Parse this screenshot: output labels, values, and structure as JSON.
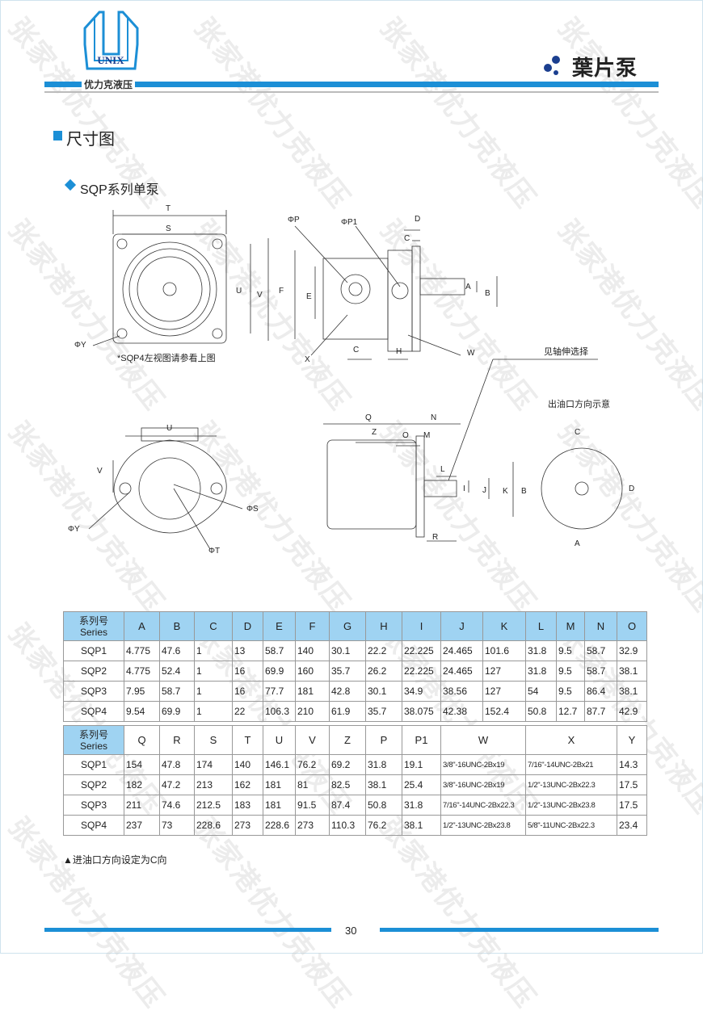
{
  "header": {
    "logo_text": "UNIX",
    "company": "优力克液压",
    "category": "葉片泵",
    "brand_color": "#1c8fd6",
    "dots_color": "#1b3f8f"
  },
  "watermark": "张家港优力克液压",
  "section_title": "尺寸图",
  "subsection_title": "SQP系列单泵",
  "drawings": {
    "front": {
      "T": "T",
      "S": "S",
      "U": "U",
      "V": "V",
      "Y": "ΦY",
      "note": "*SQP4左视图请参看上图"
    },
    "side": {
      "P": "ΦP",
      "P1": "ΦP1",
      "D": "D",
      "C": "C",
      "F": "F",
      "E": "E",
      "A": "A",
      "B": "B",
      "X": "X",
      "C2": "C",
      "H": "H",
      "W": "W"
    },
    "shaft_note": "见轴伸选择",
    "outlet_note": "出油口方向示意",
    "flange": {
      "U": "U",
      "V": "V",
      "S": "ΦS",
      "Y": "ΦY",
      "T": "ΦT"
    },
    "long": {
      "Q": "Q",
      "Z": "Z",
      "O": "O",
      "M": "M",
      "N": "N",
      "L": "L",
      "I": "I",
      "J": "J",
      "K": "K",
      "B": "B",
      "R": "R"
    },
    "outlet": {
      "C": "C",
      "D": "D",
      "A": "A"
    }
  },
  "table1": {
    "series_label_cn": "系列号",
    "series_label_en": "Series",
    "columns": [
      "A",
      "B",
      "C",
      "D",
      "E",
      "F",
      "G",
      "H",
      "I",
      "J",
      "K",
      "L",
      "M",
      "N",
      "O"
    ],
    "rows": [
      [
        "SQP1",
        "4.775",
        "47.6",
        "1",
        "13",
        "58.7",
        "140",
        "30.1",
        "22.2",
        "22.225",
        "24.465",
        "101.6",
        "31.8",
        "9.5",
        "58.7",
        "32.9"
      ],
      [
        "SQP2",
        "4.775",
        "52.4",
        "1",
        "16",
        "69.9",
        "160",
        "35.7",
        "26.2",
        "22.225",
        "24.465",
        "127",
        "31.8",
        "9.5",
        "58.7",
        "38.1"
      ],
      [
        "SQP3",
        "7.95",
        "58.7",
        "1",
        "16",
        "77.7",
        "181",
        "42.8",
        "30.1",
        "34.9",
        "38.56",
        "127",
        "54",
        "9.5",
        "86.4",
        "38.1"
      ],
      [
        "SQP4",
        "9.54",
        "69.9",
        "1",
        "22",
        "106.3",
        "210",
        "61.9",
        "35.7",
        "38.075",
        "42.38",
        "152.4",
        "50.8",
        "12.7",
        "87.7",
        "42.9"
      ]
    ]
  },
  "table2": {
    "series_label_cn": "系列号",
    "series_label_en": "Series",
    "columns": [
      "Q",
      "R",
      "S",
      "T",
      "U",
      "V",
      "Z",
      "P",
      "P1",
      "W",
      "X",
      "Y"
    ],
    "rows": [
      [
        "SQP1",
        "154",
        "47.8",
        "174",
        "140",
        "146.1",
        "76.2",
        "69.2",
        "31.8",
        "19.1",
        "3/8\"-16UNC-2Bx19",
        "7/16\"-14UNC-2Bx21",
        "14.3"
      ],
      [
        "SQP2",
        "182",
        "47.2",
        "213",
        "162",
        "181",
        "81",
        "82.5",
        "38.1",
        "25.4",
        "3/8\"-16UNC-2Bx19",
        "1/2\"-13UNC-2Bx22.3",
        "17.5"
      ],
      [
        "SQP3",
        "211",
        "74.6",
        "212.5",
        "183",
        "181",
        "91.5",
        "87.4",
        "50.8",
        "31.8",
        "7/16\"-14UNC-2Bx22.3",
        "1/2\"-13UNC-2Bx23.8",
        "17.5"
      ],
      [
        "SQP4",
        "237",
        "73",
        "228.6",
        "273",
        "228.6",
        "273",
        "110.3",
        "76.2",
        "38.1",
        "1/2\"-13UNC-2Bx23.8",
        "5/8\"-11UNC-2Bx22.3",
        "23.4"
      ]
    ]
  },
  "footnote": "▲进油口方向设定为C向",
  "page_number": "30"
}
